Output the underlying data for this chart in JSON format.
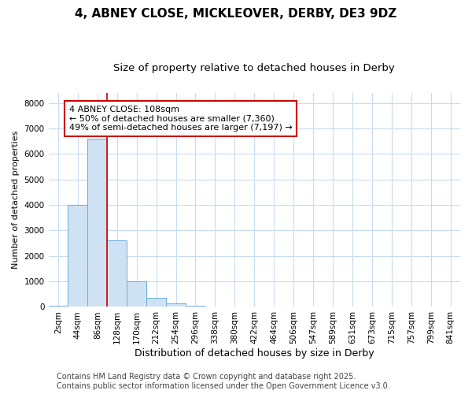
{
  "title": "4, ABNEY CLOSE, MICKLEOVER, DERBY, DE3 9DZ",
  "subtitle": "Size of property relative to detached houses in Derby",
  "xlabel": "Distribution of detached houses by size in Derby",
  "ylabel": "Number of detached properties",
  "categories": [
    "2sqm",
    "44sqm",
    "86sqm",
    "128sqm",
    "170sqm",
    "212sqm",
    "254sqm",
    "296sqm",
    "338sqm",
    "380sqm",
    "422sqm",
    "464sqm",
    "506sqm",
    "547sqm",
    "589sqm",
    "631sqm",
    "673sqm",
    "715sqm",
    "757sqm",
    "799sqm",
    "841sqm"
  ],
  "values": [
    30,
    4000,
    6600,
    2600,
    1000,
    350,
    130,
    30,
    0,
    0,
    0,
    0,
    0,
    0,
    0,
    0,
    0,
    0,
    0,
    0,
    0
  ],
  "bar_color": "#cfe2f3",
  "bar_edge_color": "#6aacde",
  "vline_x": 2.5,
  "vline_color": "#cc0000",
  "annotation_text": "4 ABNEY CLOSE: 108sqm\n← 50% of detached houses are smaller (7,360)\n49% of semi-detached houses are larger (7,197) →",
  "annotation_box_facecolor": "#ffffff",
  "annotation_box_edgecolor": "#cc0000",
  "ylim": [
    0,
    8400
  ],
  "yticks": [
    0,
    1000,
    2000,
    3000,
    4000,
    5000,
    6000,
    7000,
    8000
  ],
  "bg_color": "#ffffff",
  "plot_bg_color": "#ffffff",
  "grid_color": "#c8dcf0",
  "title_fontsize": 11,
  "subtitle_fontsize": 9.5,
  "xlabel_fontsize": 9,
  "ylabel_fontsize": 8,
  "tick_fontsize": 7.5,
  "annotation_fontsize": 8,
  "footer_fontsize": 7,
  "footer_line1": "Contains HM Land Registry data © Crown copyright and database right 2025.",
  "footer_line2": "Contains public sector information licensed under the Open Government Licence v3.0."
}
